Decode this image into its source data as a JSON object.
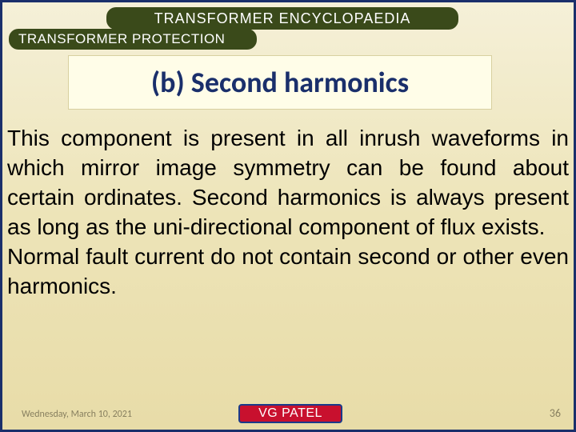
{
  "colors": {
    "slide_border": "#1a2f6b",
    "bg_top": "#f5f0d8",
    "bg_bottom": "#e8dca8",
    "pill_bg": "#3a4a1a",
    "pill_text": "#ffffff",
    "title_box_bg": "#fffde8",
    "title_text": "#1a2f6b",
    "body_text": "#000000",
    "footer_muted": "#888060",
    "author_bg": "#c8102e",
    "author_border": "#1a3a8a",
    "author_text": "#ffffff"
  },
  "header": {
    "line1": "TRANSFORMER ENCYCLOPAEDIA",
    "line2": "TRANSFORMER PROTECTION"
  },
  "title": "(b)  Second harmonics",
  "body": "This component is present in all inrush waveforms in which mirror image symmetry can be found about certain ordinates. Second harmonics is always present as long as the uni-directional component of flux exists.\nNormal fault current do not contain second or other even harmonics.",
  "footer": {
    "date": "Wednesday, March 10, 2021",
    "author": "VG PATEL",
    "page": "36"
  },
  "typography": {
    "header_fontsize": 18,
    "title_fontsize": 36,
    "body_fontsize": 28,
    "footer_fontsize": 12,
    "author_fontsize": 16
  }
}
